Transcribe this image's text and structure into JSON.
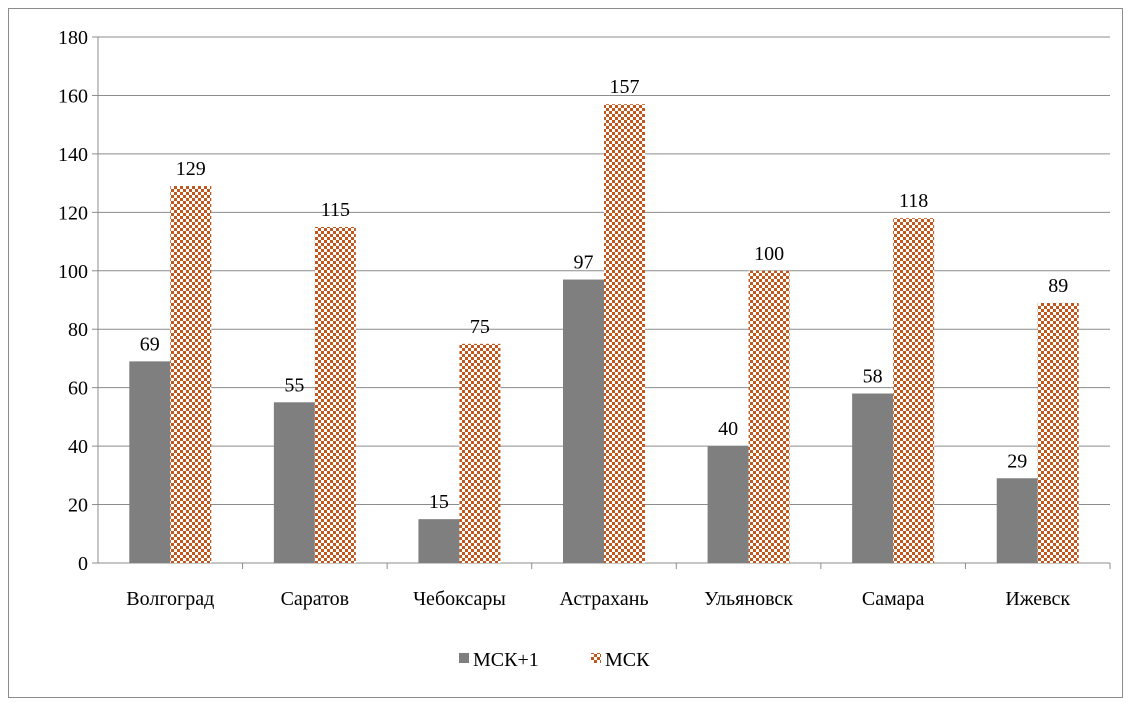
{
  "chart_data": {
    "type": "bar",
    "categories": [
      "Волгоград",
      "Саратов",
      "Чебоксары",
      "Астрахань",
      "Ульяновск",
      "Самара",
      "Ижевск"
    ],
    "series": [
      {
        "name": "МСК+1",
        "values": [
          69,
          55,
          15,
          97,
          40,
          58,
          29
        ],
        "color": "#7f7f7f",
        "pattern": "solid"
      },
      {
        "name": "МСК",
        "values": [
          129,
          115,
          75,
          157,
          100,
          118,
          89
        ],
        "color": "#c0571d",
        "pattern": "checker"
      }
    ],
    "ylim": [
      0,
      180
    ],
    "yticks": [
      0,
      20,
      40,
      60,
      80,
      100,
      120,
      140,
      160,
      180
    ],
    "grid": true,
    "legend": "bottom",
    "title": "",
    "xlabel": "",
    "ylabel": ""
  }
}
